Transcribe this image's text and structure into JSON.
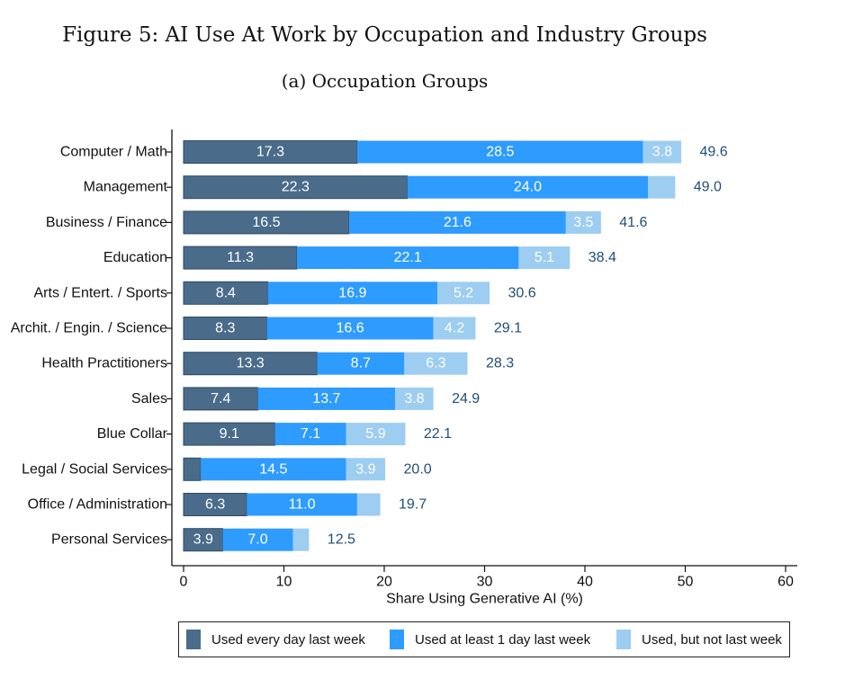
{
  "figure_title": "Figure 5: AI Use At Work by Occupation and Industry Groups",
  "subtitle": "(a) Occupation Groups",
  "colors": {
    "daily": "#4a6b8a",
    "weekly": "#2e9bff",
    "notlast": "#9dcdf0",
    "total_label": "#1f4e79"
  },
  "chart_data": {
    "type": "bar",
    "orientation": "horizontal",
    "stacked": true,
    "xlabel": "Share Using Generative AI (%)",
    "xlim": [
      0,
      60
    ],
    "xticks": [
      "0",
      "10",
      "20",
      "30",
      "40",
      "50",
      "60"
    ],
    "categories": [
      "Computer / Math",
      "Management",
      "Business / Finance",
      "Education",
      "Arts / Entert. / Sports",
      "Archit. / Engin. / Science",
      "Health Practitioners",
      "Sales",
      "Blue Collar",
      "Legal / Social Services",
      "Office / Administration",
      "Personal Services"
    ],
    "series": [
      {
        "name": "Used every day last week",
        "values": [
          17.3,
          22.3,
          16.5,
          11.3,
          8.4,
          8.3,
          13.3,
          7.4,
          9.1,
          1.7,
          6.3,
          3.9
        ],
        "labels": [
          "17.3",
          "22.3",
          "16.5",
          "11.3",
          "8.4",
          "8.3",
          "13.3",
          "7.4",
          "9.1",
          "",
          "6.3",
          "3.9"
        ]
      },
      {
        "name": "Used at least 1 day last week",
        "values": [
          28.5,
          24.0,
          21.6,
          22.1,
          16.9,
          16.6,
          8.7,
          13.7,
          7.1,
          14.5,
          11.0,
          7.0
        ],
        "labels": [
          "28.5",
          "24.0",
          "21.6",
          "22.1",
          "16.9",
          "16.6",
          "8.7",
          "13.7",
          "7.1",
          "14.5",
          "11.0",
          "7.0"
        ]
      },
      {
        "name": "Used, but not last week",
        "values": [
          3.8,
          2.7,
          3.5,
          5.1,
          5.2,
          4.2,
          6.3,
          3.8,
          5.9,
          3.9,
          2.3,
          1.6
        ],
        "labels": [
          "3.8",
          "",
          "3.5",
          "5.1",
          "5.2",
          "4.2",
          "6.3",
          "3.8",
          "5.9",
          "3.9",
          "",
          ""
        ]
      }
    ],
    "totals": [
      "49.6",
      "49.0",
      "41.6",
      "38.4",
      "30.6",
      "29.1",
      "28.3",
      "24.9",
      "22.1",
      "20.0",
      "19.7",
      "12.5"
    ],
    "legend_position": "bottom"
  }
}
